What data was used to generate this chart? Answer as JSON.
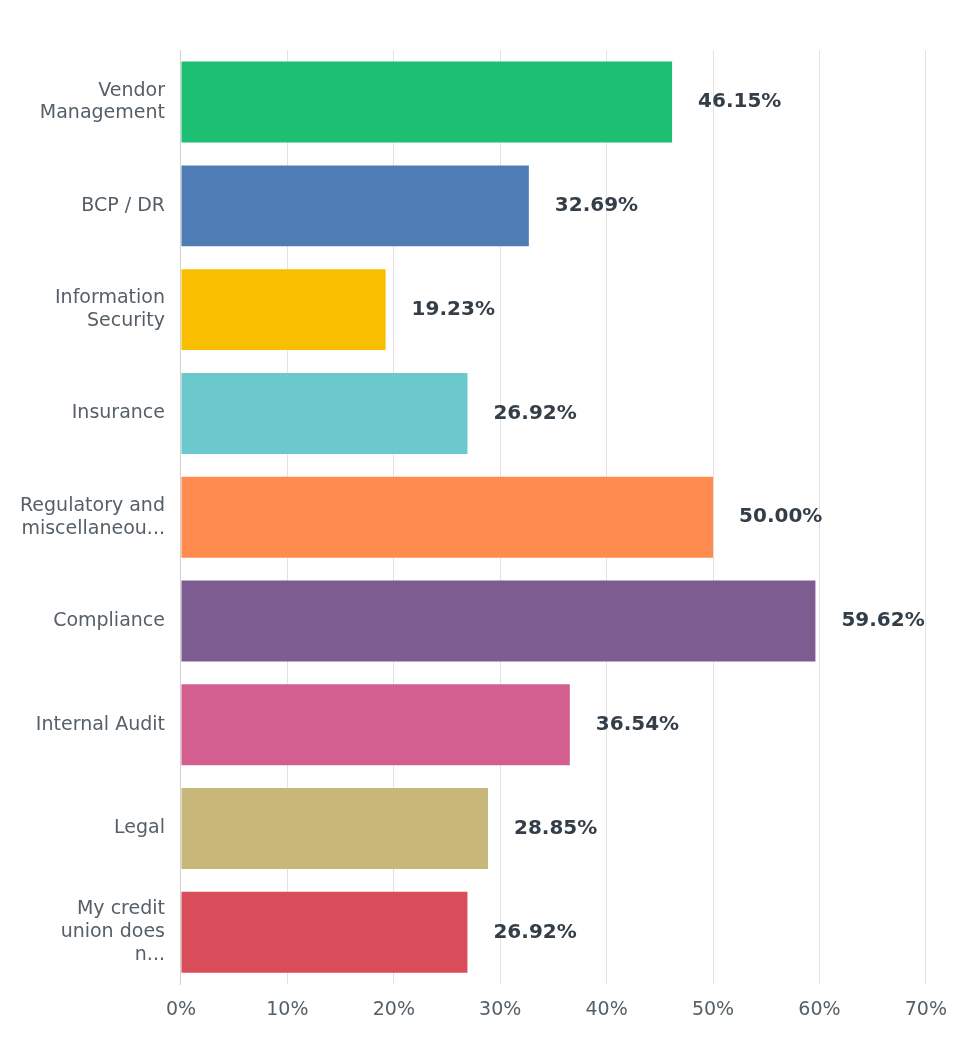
{
  "chart_data": {
    "type": "bar",
    "orientation": "horizontal",
    "categories": [
      "Vendor Management",
      "BCP / DR",
      "Information Security",
      "Insurance",
      "Regulatory and miscellaneou...",
      "Compliance",
      "Internal Audit",
      "Legal",
      "My credit union does n..."
    ],
    "values": [
      46.15,
      32.69,
      19.23,
      26.92,
      50.0,
      59.62,
      36.54,
      28.85,
      26.92
    ],
    "colors": [
      "#1dbf73",
      "#507cb6",
      "#f9be00",
      "#6bc8cd",
      "#ff8b4f",
      "#7d5c91",
      "#d25f90",
      "#c7b879",
      "#d94d5a"
    ],
    "value_labels": [
      "46.15%",
      "32.69%",
      "19.23%",
      "26.92%",
      "50.00%",
      "59.62%",
      "36.54%",
      "28.85%",
      "26.92%"
    ],
    "xlim": [
      0,
      70
    ],
    "xticks": [
      {
        "value": 0,
        "label": "0%"
      },
      {
        "value": 10,
        "label": "10%"
      },
      {
        "value": 20,
        "label": "20%"
      },
      {
        "value": 30,
        "label": "30%"
      },
      {
        "value": 40,
        "label": "40%"
      },
      {
        "value": 50,
        "label": "50%"
      },
      {
        "value": 60,
        "label": "60%"
      },
      {
        "value": 70,
        "label": "70%"
      }
    ],
    "grid": "x",
    "legend": false
  }
}
